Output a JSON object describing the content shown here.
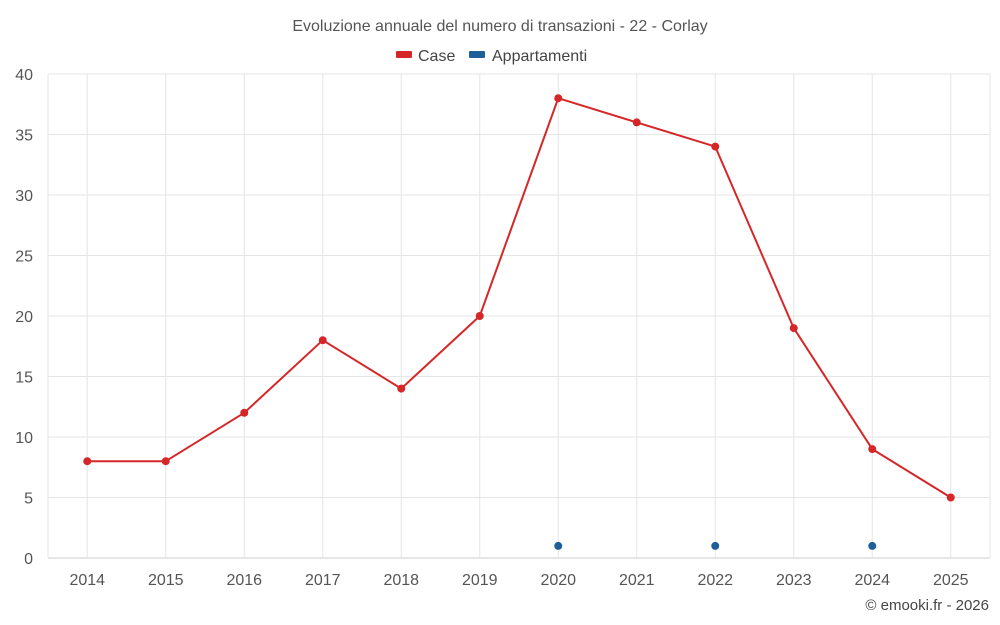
{
  "chart_data": {
    "type": "line",
    "title": "Evoluzione annuale del numero di transazioni - 22 - Corlay",
    "categories": [
      "2014",
      "2015",
      "2016",
      "2017",
      "2018",
      "2019",
      "2020",
      "2021",
      "2022",
      "2023",
      "2024",
      "2025"
    ],
    "series": [
      {
        "name": "Case",
        "color": "#d62728",
        "values": [
          8,
          8,
          12,
          18,
          14,
          20,
          38,
          36,
          34,
          19,
          9,
          5
        ]
      },
      {
        "name": "Appartamenti",
        "color": "#1f5f99",
        "values": [
          null,
          null,
          null,
          null,
          null,
          null,
          1,
          null,
          1,
          null,
          1,
          null
        ]
      }
    ],
    "ylim": [
      0,
      40
    ],
    "yticks": [
      0,
      5,
      10,
      15,
      20,
      25,
      30,
      35,
      40
    ],
    "grid": true,
    "legend": "top-center"
  },
  "credit": "© emooki.fr - 2026"
}
